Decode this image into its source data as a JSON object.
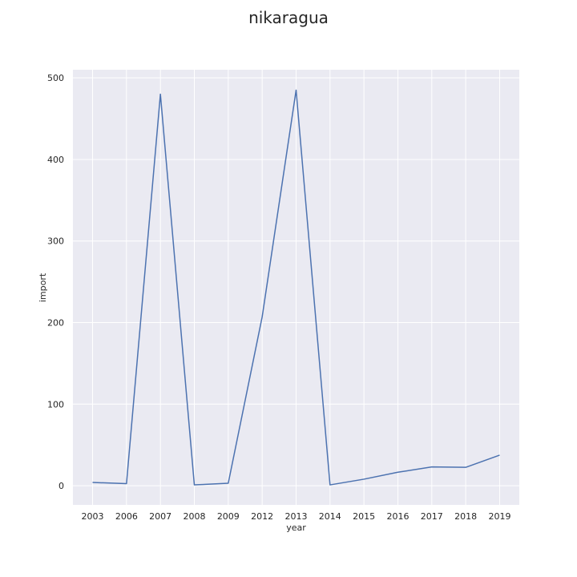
{
  "chart_data": {
    "type": "line",
    "title": "nikaragua",
    "xlabel": "year",
    "ylabel": "import",
    "categories": [
      "2003",
      "2006",
      "2007",
      "2008",
      "2009",
      "2012",
      "2013",
      "2014",
      "2015",
      "2016",
      "2017",
      "2018",
      "2019"
    ],
    "series": [
      {
        "values": [
          4,
          2.5,
          480,
          1,
          3,
          207,
          485,
          1,
          8,
          16.5,
          23,
          22.5,
          37.5
        ],
        "color": "#4c72b0"
      }
    ],
    "ylim": [
      -23.5,
      510
    ],
    "yticks": [
      0,
      100,
      200,
      300,
      400,
      500
    ],
    "grid": true,
    "background": "#eaeaf2",
    "grid_color": "#ffffff"
  }
}
